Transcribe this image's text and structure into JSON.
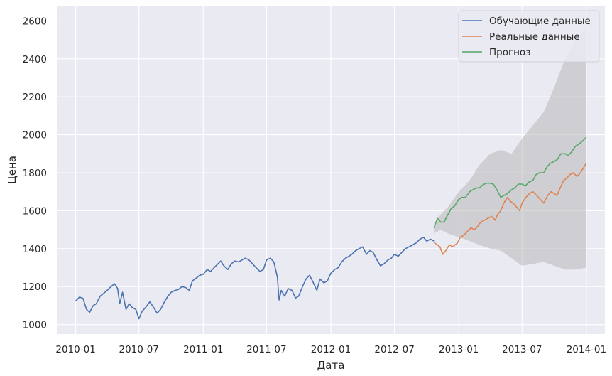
{
  "chart_data": {
    "type": "line",
    "xlabel": "Дата",
    "ylabel": "Цена",
    "xlim": [
      "2009-11-08",
      "2014-02-23"
    ],
    "ylim": [
      950,
      2680
    ],
    "grid": true,
    "legend_position": "top-right",
    "x_ticks": [
      "2010-01",
      "2010-07",
      "2011-01",
      "2011-07",
      "2012-01",
      "2012-07",
      "2013-01",
      "2013-07",
      "2014-01"
    ],
    "y_ticks": [
      1000,
      1200,
      1400,
      1600,
      1800,
      2000,
      2200,
      2400,
      2600
    ],
    "colors": {
      "background": "#eaeaf2",
      "grid": "#ffffff",
      "band": "#b4b4b4",
      "train": "#4c72b0",
      "actual": "#dd8452",
      "forecast": "#55a868"
    },
    "series": [
      {
        "name": "Обучающие данные",
        "x": [
          "2010-01-01",
          "2010-01-12",
          "2010-01-22",
          "2010-02-01",
          "2010-02-10",
          "2010-02-20",
          "2010-03-01",
          "2010-03-12",
          "2010-03-22",
          "2010-04-01",
          "2010-04-12",
          "2010-04-22",
          "2010-05-01",
          "2010-05-07",
          "2010-05-15",
          "2010-05-25",
          "2010-06-03",
          "2010-06-12",
          "2010-06-22",
          "2010-07-01",
          "2010-07-10",
          "2010-07-20",
          "2010-08-01",
          "2010-08-12",
          "2010-08-22",
          "2010-09-01",
          "2010-09-12",
          "2010-09-22",
          "2010-10-01",
          "2010-10-12",
          "2010-10-22",
          "2010-11-01",
          "2010-11-12",
          "2010-11-22",
          "2010-12-01",
          "2010-12-12",
          "2010-12-22",
          "2011-01-01",
          "2011-01-12",
          "2011-01-22",
          "2011-02-01",
          "2011-02-12",
          "2011-02-20",
          "2011-03-01",
          "2011-03-12",
          "2011-03-22",
          "2011-04-01",
          "2011-04-12",
          "2011-04-22",
          "2011-05-01",
          "2011-05-12",
          "2011-05-22",
          "2011-06-01",
          "2011-06-12",
          "2011-06-22",
          "2011-07-01",
          "2011-07-12",
          "2011-07-22",
          "2011-08-01",
          "2011-08-06",
          "2011-08-12",
          "2011-08-22",
          "2011-09-01",
          "2011-09-12",
          "2011-09-22",
          "2011-10-01",
          "2011-10-12",
          "2011-10-22",
          "2011-11-01",
          "2011-11-12",
          "2011-11-22",
          "2011-12-01",
          "2011-12-12",
          "2011-12-22",
          "2012-01-01",
          "2012-01-12",
          "2012-01-22",
          "2012-02-01",
          "2012-02-12",
          "2012-02-22",
          "2012-03-01",
          "2012-03-12",
          "2012-03-22",
          "2012-04-01",
          "2012-04-12",
          "2012-04-22",
          "2012-05-01",
          "2012-05-12",
          "2012-05-22",
          "2012-06-01",
          "2012-06-12",
          "2012-06-22",
          "2012-07-01",
          "2012-07-12",
          "2012-07-22",
          "2012-08-01",
          "2012-08-12",
          "2012-08-22",
          "2012-09-01",
          "2012-09-12",
          "2012-09-22",
          "2012-10-01",
          "2012-10-12",
          "2012-10-22"
        ],
        "y": [
          1125,
          1145,
          1138,
          1080,
          1065,
          1100,
          1110,
          1150,
          1165,
          1180,
          1200,
          1215,
          1190,
          1110,
          1170,
          1080,
          1110,
          1090,
          1080,
          1030,
          1070,
          1090,
          1120,
          1090,
          1060,
          1080,
          1120,
          1150,
          1170,
          1180,
          1185,
          1200,
          1195,
          1180,
          1230,
          1245,
          1260,
          1265,
          1290,
          1280,
          1300,
          1320,
          1335,
          1310,
          1290,
          1320,
          1335,
          1330,
          1340,
          1350,
          1340,
          1320,
          1300,
          1280,
          1290,
          1340,
          1350,
          1330,
          1250,
          1130,
          1180,
          1150,
          1190,
          1180,
          1140,
          1150,
          1200,
          1240,
          1260,
          1220,
          1180,
          1240,
          1220,
          1230,
          1270,
          1290,
          1300,
          1330,
          1350,
          1360,
          1370,
          1390,
          1400,
          1410,
          1370,
          1390,
          1380,
          1340,
          1310,
          1320,
          1340,
          1350,
          1370,
          1360,
          1380,
          1400,
          1410,
          1420,
          1430,
          1450,
          1460,
          1440,
          1450,
          1440
        ]
      },
      {
        "name": "Реальные данные",
        "x": [
          "2012-10-22",
          "2012-11-01",
          "2012-11-08",
          "2012-11-16",
          "2012-11-25",
          "2012-12-05",
          "2012-12-15",
          "2012-12-28",
          "2013-01-05",
          "2013-01-15",
          "2013-01-25",
          "2013-02-05",
          "2013-02-15",
          "2013-02-25",
          "2013-03-05",
          "2013-03-15",
          "2013-03-25",
          "2013-04-05",
          "2013-04-15",
          "2013-04-22",
          "2013-05-01",
          "2013-05-10",
          "2013-05-20",
          "2013-05-28",
          "2013-06-05",
          "2013-06-15",
          "2013-06-24",
          "2013-07-01",
          "2013-07-12",
          "2013-07-22",
          "2013-08-01",
          "2013-08-12",
          "2013-08-22",
          "2013-09-01",
          "2013-09-12",
          "2013-09-22",
          "2013-10-01",
          "2013-10-09",
          "2013-10-18",
          "2013-10-28",
          "2013-11-05",
          "2013-11-15",
          "2013-11-25",
          "2013-12-05",
          "2013-12-15",
          "2013-12-25",
          "2013-12-31"
        ],
        "y": [
          1433,
          1420,
          1410,
          1370,
          1390,
          1420,
          1410,
          1430,
          1460,
          1470,
          1490,
          1510,
          1500,
          1520,
          1540,
          1550,
          1560,
          1570,
          1550,
          1580,
          1600,
          1640,
          1670,
          1650,
          1640,
          1620,
          1600,
          1640,
          1670,
          1690,
          1700,
          1680,
          1660,
          1640,
          1680,
          1700,
          1690,
          1680,
          1720,
          1760,
          1770,
          1790,
          1800,
          1780,
          1800,
          1830,
          1848
        ]
      },
      {
        "name": "Прогноз",
        "x": [
          "2012-10-22",
          "2012-11-01",
          "2012-11-10",
          "2012-11-20",
          "2012-12-01",
          "2012-12-10",
          "2012-12-20",
          "2013-01-01",
          "2013-01-10",
          "2013-01-20",
          "2013-02-01",
          "2013-02-10",
          "2013-02-20",
          "2013-03-01",
          "2013-03-10",
          "2013-03-20",
          "2013-04-01",
          "2013-04-10",
          "2013-04-20",
          "2013-05-01",
          "2013-05-10",
          "2013-05-20",
          "2013-06-01",
          "2013-06-10",
          "2013-06-20",
          "2013-07-01",
          "2013-07-10",
          "2013-07-20",
          "2013-08-01",
          "2013-08-10",
          "2013-08-20",
          "2013-09-01",
          "2013-09-10",
          "2013-09-20",
          "2013-10-01",
          "2013-10-10",
          "2013-10-20",
          "2013-11-01",
          "2013-11-10",
          "2013-11-20",
          "2013-12-01",
          "2013-12-10",
          "2013-12-20",
          "2013-12-31"
        ],
        "y": [
          1510,
          1560,
          1540,
          1540,
          1580,
          1610,
          1625,
          1660,
          1670,
          1670,
          1700,
          1710,
          1720,
          1720,
          1735,
          1745,
          1745,
          1740,
          1710,
          1670,
          1680,
          1690,
          1710,
          1720,
          1740,
          1740,
          1730,
          1750,
          1760,
          1790,
          1800,
          1800,
          1830,
          1850,
          1860,
          1870,
          1900,
          1900,
          1890,
          1910,
          1940,
          1950,
          1965,
          1985
        ]
      }
    ],
    "confidence_band": {
      "x": [
        "2012-10-22",
        "2012-11-10",
        "2012-12-01",
        "2013-01-01",
        "2013-02-01",
        "2013-03-01",
        "2013-04-01",
        "2013-05-01",
        "2013-06-01",
        "2013-07-01",
        "2013-08-01",
        "2013-09-01",
        "2013-10-01",
        "2013-11-01",
        "2013-12-01",
        "2013-12-31"
      ],
      "upper": [
        1530,
        1580,
        1620,
        1700,
        1760,
        1840,
        1900,
        1920,
        1900,
        1980,
        2050,
        2120,
        2250,
        2400,
        2500,
        2560
      ],
      "lower": [
        1480,
        1500,
        1480,
        1460,
        1440,
        1420,
        1400,
        1390,
        1350,
        1310,
        1320,
        1330,
        1310,
        1290,
        1290,
        1300
      ]
    }
  }
}
